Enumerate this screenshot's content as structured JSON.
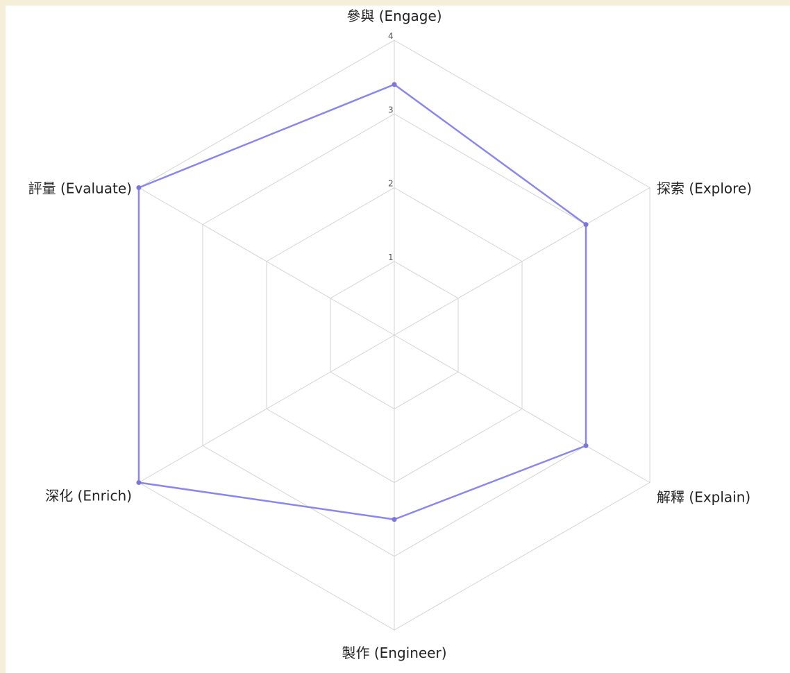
{
  "chart_data": {
    "type": "radar",
    "axes": [
      "參與 (Engage)",
      "探索 (Explore)",
      "解釋 (Explain)",
      "製作 (Engineer)",
      "深化 (Enrich)",
      "評量 (Evaluate)"
    ],
    "range": [
      0,
      4
    ],
    "ticks": [
      "1",
      "2",
      "3",
      "4"
    ],
    "series": [
      {
        "values": [
          3.4,
          3.0,
          3.0,
          2.5,
          4.0,
          4.0
        ],
        "color": "#8a86f0"
      }
    ],
    "grid": true,
    "legend": "none"
  },
  "colors": {
    "background": "#f5efda",
    "plot_background": "#ffffff",
    "grid": "#d3d3d3",
    "series": "#8a86f0"
  }
}
